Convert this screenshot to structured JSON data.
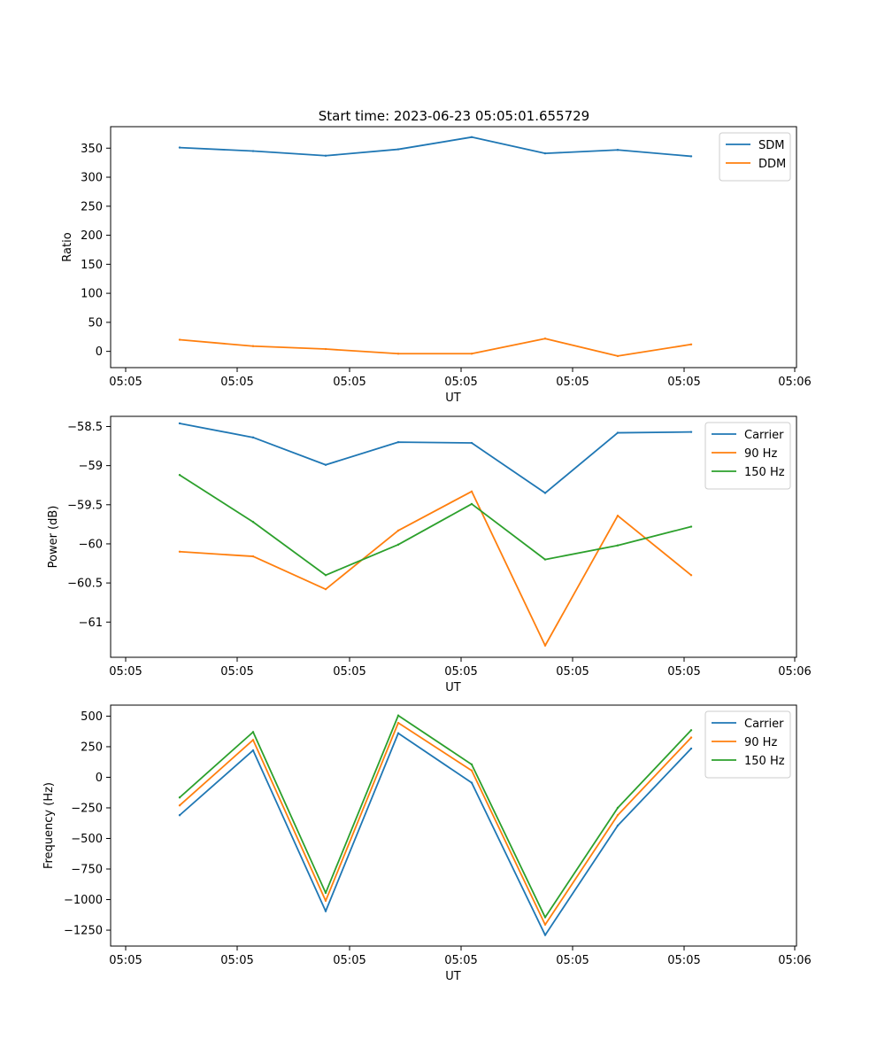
{
  "figure": {
    "title": "Start time: 2023-06-23 05:05:01.655729"
  },
  "colors": {
    "blue": "#1f77b4",
    "orange": "#ff7f0e",
    "green": "#2ca02c"
  },
  "chart_data": [
    {
      "type": "line",
      "xlabel": "UT",
      "ylabel": "Ratio",
      "x": [
        "05:05",
        "05:05",
        "05:05",
        "05:05",
        "05:05",
        "05:05",
        "05:05",
        "05:05"
      ],
      "xticks": [
        "05:05",
        "05:05",
        "05:05",
        "05:05",
        "05:05",
        "05:05",
        "05:06"
      ],
      "yticks": [
        0,
        50,
        100,
        150,
        200,
        250,
        300,
        350
      ],
      "ylim": [
        -28,
        387
      ],
      "legend": "top-right",
      "series": [
        {
          "name": "SDM",
          "color": "#1f77b4",
          "values": [
            351,
            345,
            337,
            348,
            369,
            341,
            347,
            336
          ]
        },
        {
          "name": "DDM",
          "color": "#ff7f0e",
          "values": [
            20,
            9,
            4,
            -4,
            -4,
            22,
            -8,
            12
          ]
        }
      ]
    },
    {
      "type": "line",
      "xlabel": "UT",
      "ylabel": "Power (dB)",
      "x": [
        "05:05",
        "05:05",
        "05:05",
        "05:05",
        "05:05",
        "05:05",
        "05:05",
        "05:05"
      ],
      "xticks": [
        "05:05",
        "05:05",
        "05:05",
        "05:05",
        "05:05",
        "05:05",
        "05:06"
      ],
      "yticks": [
        -61.0,
        -60.5,
        -60.0,
        -59.5,
        -59.0,
        -58.5
      ],
      "ylim": [
        -61.45,
        -58.37
      ],
      "legend": "top-right",
      "series": [
        {
          "name": "Carrier",
          "color": "#1f77b4",
          "values": [
            -58.46,
            -58.64,
            -58.99,
            -58.7,
            -58.71,
            -59.35,
            -58.58,
            -58.57
          ]
        },
        {
          "name": "90 Hz",
          "color": "#ff7f0e",
          "values": [
            -60.1,
            -60.16,
            -60.58,
            -59.83,
            -59.33,
            -61.3,
            -59.64,
            -60.4
          ]
        },
        {
          "name": "150 Hz",
          "color": "#2ca02c",
          "values": [
            -59.12,
            -59.72,
            -60.4,
            -60.01,
            -59.49,
            -60.2,
            -60.02,
            -59.78
          ]
        }
      ]
    },
    {
      "type": "line",
      "xlabel": "UT",
      "ylabel": "Frequency (Hz)",
      "x": [
        "05:05",
        "05:05",
        "05:05",
        "05:05",
        "05:05",
        "05:05",
        "05:05",
        "05:05"
      ],
      "xticks": [
        "05:05",
        "05:05",
        "05:05",
        "05:05",
        "05:05",
        "05:05",
        "05:06"
      ],
      "yticks": [
        -1250,
        -1000,
        -750,
        -500,
        -250,
        0,
        250,
        500
      ],
      "ylim": [
        -1380,
        590
      ],
      "legend": "top-right",
      "series": [
        {
          "name": "Carrier",
          "color": "#1f77b4",
          "values": [
            -310,
            220,
            -1095,
            360,
            -45,
            -1290,
            -395,
            235
          ]
        },
        {
          "name": "90 Hz",
          "color": "#ff7f0e",
          "values": [
            -230,
            305,
            -1010,
            445,
            55,
            -1205,
            -310,
            325
          ]
        },
        {
          "name": "150 Hz",
          "color": "#2ca02c",
          "values": [
            -165,
            370,
            -945,
            505,
            105,
            -1145,
            -250,
            385
          ]
        }
      ]
    }
  ]
}
